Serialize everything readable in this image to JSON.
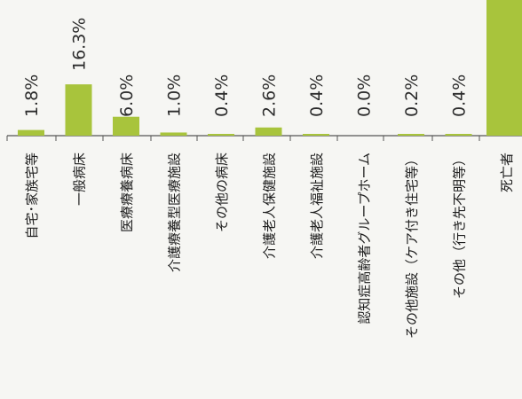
{
  "chart_data": {
    "type": "bar",
    "categories": [
      "自宅･家族宅等",
      "一般病床",
      "医療療養病床",
      "介護療養型医療施設",
      "その他の病床",
      "介護老人保健施設",
      "介護老人福祉施設",
      "認知症高齢者グループホーム",
      "その他施設（ケア付き住宅等）",
      "その他（行き先不明等）",
      "死亡者"
    ],
    "values": [
      1.8,
      16.3,
      6.0,
      1.0,
      0.4,
      2.6,
      0.4,
      0.0,
      0.2,
      0.4,
      null
    ],
    "value_labels": [
      "1.8%",
      "16.3%",
      "6.0%",
      "1.0%",
      "0.4%",
      "2.6%",
      "0.4%",
      "0.0%",
      "0.2%",
      "0.4%",
      ""
    ],
    "title": "",
    "xlabel": "",
    "ylabel": "",
    "bar_color": "#a8c43c",
    "axis_color": "#555555",
    "orientation": "vertical, labels rotated 90°",
    "note": "last bar extends beyond the top of the visible area"
  }
}
